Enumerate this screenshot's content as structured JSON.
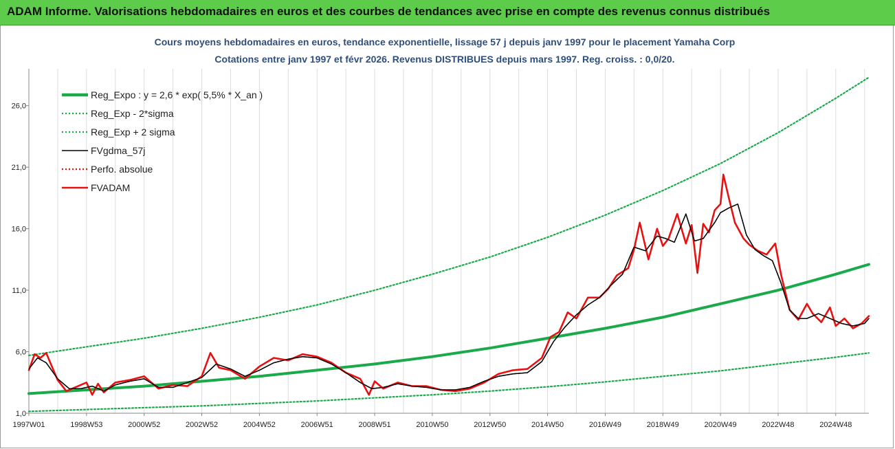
{
  "banner": {
    "title": "ADAM Informe. Valorisations hebdomadaires en euros et des courbes de tendances avec prise en compte des revenus connus distribués"
  },
  "chart_data": {
    "type": "line",
    "title": "Cours moyens hebdomadaires en euros, tendance exponentielle, lissage 57 j depuis janv 1997 pour le placement Yamaha Corp",
    "subtitle": "Cotations entre janv 1997 et févr 2026. Revenus DISTRIBUES depuis mars 1997. Reg. croiss. : 0,0/20.",
    "xlabel": "",
    "ylabel": "",
    "ylim": [
      1.0,
      29.0
    ],
    "xlim": [
      1997.0,
      2026.15
    ],
    "yticks": [
      1.0,
      6.0,
      11.0,
      16.0,
      21.0,
      26.0
    ],
    "ytick_labels": [
      "1,0",
      "6,0",
      "11,0",
      "16,0",
      "21,0",
      "26,0"
    ],
    "xtick_labels": [
      {
        "label": "1997W01",
        "t": 1997.0
      },
      {
        "label": "1998W53",
        "t": 1999.0
      },
      {
        "label": "2000W52",
        "t": 2001.0
      },
      {
        "label": "2002W52",
        "t": 2003.0
      },
      {
        "label": "2004W52",
        "t": 2005.0
      },
      {
        "label": "2006W51",
        "t": 2007.0
      },
      {
        "label": "2008W51",
        "t": 2009.0
      },
      {
        "label": "2010W50",
        "t": 2011.0
      },
      {
        "label": "2012W50",
        "t": 2013.0
      },
      {
        "label": "2014W50",
        "t": 2015.0
      },
      {
        "label": "2016W49",
        "t": 2017.0
      },
      {
        "label": "2018W49",
        "t": 2019.0
      },
      {
        "label": "2020W49",
        "t": 2021.0
      },
      {
        "label": "2022W48",
        "t": 2023.0
      },
      {
        "label": "2024W48",
        "t": 2025.0
      }
    ],
    "grid": "vertical",
    "legend_position": "top-left",
    "legend": [
      {
        "label": "Reg_Expo : y = 2,6 * exp( 5,5% *  X_an )",
        "color": "#1aaa4a",
        "style": "solid-thick"
      },
      {
        "label": "Reg_Exp - 2*sigma",
        "color": "#1aaa4a",
        "style": "dotted"
      },
      {
        "label": "Reg_Exp + 2 sigma",
        "color": "#1aaa4a",
        "style": "dotted"
      },
      {
        "label": "FVgdma_57j",
        "color": "#000000",
        "style": "solid"
      },
      {
        "label": "Perfo. absolue",
        "color": "#e81010",
        "style": "dotted"
      },
      {
        "label": "FVADAM",
        "color": "#e81010",
        "style": "solid-thick"
      }
    ],
    "series": [
      {
        "name": "Reg_Expo : y = 2,6 * exp( 5,5% *  X_an )",
        "color": "#1aaa4a",
        "x": [
          1997.0,
          1999.0,
          2001.0,
          2003.0,
          2005.0,
          2007.0,
          2009.0,
          2011.0,
          2013.0,
          2015.0,
          2017.0,
          2019.0,
          2021.0,
          2023.0,
          2025.0,
          2026.15
        ],
        "y": [
          2.6,
          2.9,
          3.2,
          3.6,
          4.0,
          4.5,
          5.0,
          5.6,
          6.3,
          7.1,
          7.9,
          8.8,
          9.9,
          11.0,
          12.3,
          13.1
        ]
      },
      {
        "name": "Reg_Exp - 2*sigma",
        "color": "#1aaa4a",
        "x": [
          1997.0,
          1999.0,
          2001.0,
          2003.0,
          2005.0,
          2007.0,
          2009.0,
          2011.0,
          2013.0,
          2015.0,
          2017.0,
          2019.0,
          2021.0,
          2023.0,
          2025.0,
          2026.15
        ],
        "y": [
          1.15,
          1.3,
          1.45,
          1.6,
          1.8,
          2.0,
          2.25,
          2.5,
          2.8,
          3.15,
          3.55,
          4.0,
          4.45,
          5.0,
          5.55,
          5.9
        ]
      },
      {
        "name": "Reg_Exp + 2 sigma",
        "color": "#1aaa4a",
        "x": [
          1997.0,
          1999.0,
          2001.0,
          2003.0,
          2005.0,
          2007.0,
          2009.0,
          2011.0,
          2013.0,
          2015.0,
          2017.0,
          2019.0,
          2021.0,
          2023.0,
          2025.0,
          2026.15
        ],
        "y": [
          5.7,
          6.4,
          7.1,
          7.9,
          8.8,
          9.8,
          11.0,
          12.3,
          13.7,
          15.3,
          17.1,
          19.1,
          21.3,
          23.8,
          26.6,
          28.3
        ]
      },
      {
        "name": "FVgdma_57j",
        "color": "#000000",
        "x": [
          1997.0,
          1997.3,
          1997.6,
          1998.0,
          1998.4,
          1998.8,
          1999.2,
          1999.6,
          2000.0,
          2000.5,
          2001.0,
          2001.5,
          2002.0,
          2002.5,
          2003.0,
          2003.5,
          2004.0,
          2004.5,
          2005.0,
          2005.5,
          2006.0,
          2006.5,
          2007.0,
          2007.5,
          2008.0,
          2008.5,
          2008.9,
          2009.3,
          2009.8,
          2010.3,
          2010.8,
          2011.3,
          2011.8,
          2012.3,
          2012.8,
          2013.3,
          2013.8,
          2014.3,
          2014.8,
          2015.2,
          2015.6,
          2016.0,
          2016.4,
          2016.8,
          2017.2,
          2017.6,
          2018.0,
          2018.4,
          2018.8,
          2019.1,
          2019.4,
          2019.8,
          2020.1,
          2020.4,
          2020.8,
          2021.0,
          2021.3,
          2021.6,
          2021.9,
          2022.2,
          2022.5,
          2022.8,
          2023.1,
          2023.4,
          2023.7,
          2024.0,
          2024.4,
          2024.8,
          2025.2,
          2025.6,
          2026.0,
          2026.15
        ],
        "y": [
          4.6,
          5.5,
          5.1,
          3.8,
          3.0,
          3.0,
          3.2,
          2.8,
          3.3,
          3.6,
          3.8,
          3.1,
          3.1,
          3.5,
          3.9,
          5.0,
          4.6,
          4.0,
          4.5,
          5.1,
          5.4,
          5.6,
          5.5,
          5.0,
          4.3,
          3.5,
          3.0,
          3.1,
          3.4,
          3.2,
          3.1,
          2.9,
          2.9,
          3.1,
          3.6,
          4.0,
          4.2,
          4.3,
          5.2,
          6.8,
          8.0,
          9.0,
          9.8,
          10.4,
          11.4,
          12.3,
          14.5,
          14.2,
          15.4,
          15.2,
          14.9,
          17.2,
          15.0,
          15.2,
          16.5,
          17.3,
          17.7,
          18.0,
          15.5,
          14.3,
          13.8,
          13.4,
          11.6,
          9.4,
          8.7,
          8.7,
          9.1,
          8.7,
          8.3,
          8.1,
          8.3,
          8.7
        ]
      },
      {
        "name": "FVADAM",
        "color": "#e81010",
        "x": [
          1997.0,
          1997.2,
          1997.4,
          1997.6,
          1997.8,
          1998.0,
          1998.3,
          1998.6,
          1999.0,
          1999.2,
          1999.4,
          1999.6,
          2000.0,
          2000.5,
          2001.0,
          2001.5,
          2002.0,
          2002.5,
          2003.0,
          2003.3,
          2003.6,
          2004.0,
          2004.5,
          2005.0,
          2005.5,
          2006.0,
          2006.5,
          2007.0,
          2007.5,
          2008.0,
          2008.5,
          2008.8,
          2009.0,
          2009.3,
          2009.8,
          2010.3,
          2010.8,
          2011.3,
          2011.8,
          2012.3,
          2012.8,
          2013.3,
          2013.8,
          2014.3,
          2014.8,
          2015.1,
          2015.4,
          2015.7,
          2016.0,
          2016.4,
          2016.8,
          2017.1,
          2017.4,
          2017.8,
          2018.0,
          2018.2,
          2018.5,
          2018.8,
          2019.0,
          2019.2,
          2019.5,
          2019.8,
          2020.0,
          2020.2,
          2020.4,
          2020.6,
          2020.8,
          2021.0,
          2021.1,
          2021.3,
          2021.5,
          2021.8,
          2022.0,
          2022.3,
          2022.6,
          2022.9,
          2023.1,
          2023.4,
          2023.7,
          2024.0,
          2024.2,
          2024.5,
          2024.8,
          2025.0,
          2025.3,
          2025.6,
          2025.9,
          2026.15
        ],
        "y": [
          4.5,
          5.8,
          5.5,
          5.9,
          4.8,
          3.7,
          2.8,
          3.1,
          3.5,
          2.5,
          3.4,
          2.7,
          3.5,
          3.7,
          4.0,
          3.0,
          3.3,
          3.2,
          4.0,
          5.9,
          4.7,
          4.5,
          3.8,
          4.8,
          5.5,
          5.3,
          5.8,
          5.6,
          5.1,
          4.3,
          3.8,
          2.5,
          3.6,
          3.0,
          3.5,
          3.2,
          3.2,
          2.9,
          2.8,
          3.0,
          3.5,
          4.2,
          4.5,
          4.6,
          5.5,
          7.2,
          7.6,
          9.2,
          8.7,
          10.4,
          10.4,
          11.1,
          12.2,
          12.8,
          14.3,
          16.5,
          13.5,
          16.0,
          14.6,
          15.2,
          17.2,
          14.8,
          16.3,
          12.4,
          16.4,
          15.7,
          17.5,
          18.0,
          20.4,
          18.4,
          16.5,
          15.2,
          14.7,
          14.2,
          13.9,
          14.8,
          12.3,
          9.4,
          8.6,
          9.9,
          9.1,
          8.4,
          9.6,
          8.1,
          8.7,
          7.9,
          8.3,
          8.9
        ]
      }
    ]
  }
}
